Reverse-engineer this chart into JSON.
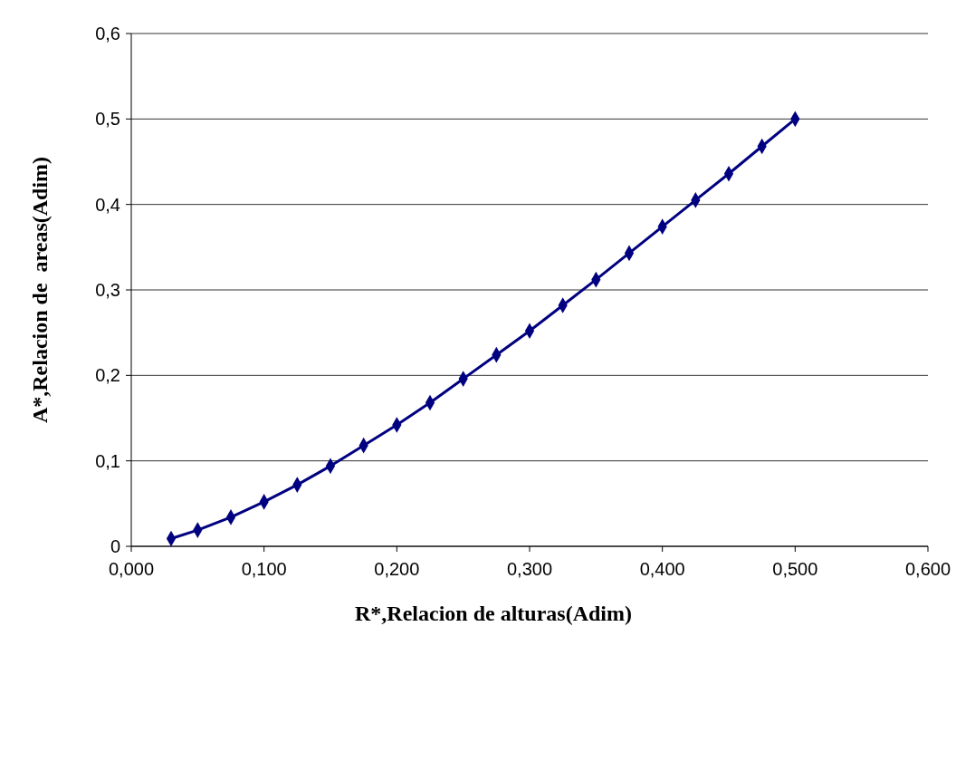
{
  "chart_data": {
    "type": "line",
    "xlabel": "R*,Relacion de alturas(Adim)",
    "ylabel": "A*,Relacion de  areas(Adim)",
    "x": [
      0.03,
      0.05,
      0.075,
      0.1,
      0.125,
      0.15,
      0.175,
      0.2,
      0.225,
      0.25,
      0.275,
      0.3,
      0.325,
      0.35,
      0.375,
      0.4,
      0.425,
      0.45,
      0.475,
      0.5
    ],
    "series": [
      {
        "color": "#000080",
        "values": [
          0.009,
          0.019,
          0.034,
          0.052,
          0.072,
          0.094,
          0.118,
          0.142,
          0.168,
          0.196,
          0.224,
          0.252,
          0.282,
          0.312,
          0.343,
          0.374,
          0.405,
          0.436,
          0.468,
          0.5
        ]
      }
    ],
    "xlim": [
      0,
      0.6
    ],
    "ylim": [
      0,
      0.6
    ],
    "xticks": [
      {
        "value": 0,
        "label": "0,000"
      },
      {
        "value": 0.1,
        "label": "0,100"
      },
      {
        "value": 0.2,
        "label": "0,200"
      },
      {
        "value": 0.3,
        "label": "0,300"
      },
      {
        "value": 0.4,
        "label": "0,400"
      },
      {
        "value": 0.5,
        "label": "0,500"
      },
      {
        "value": 0.6,
        "label": "0,600"
      }
    ],
    "yticks": [
      0,
      {
        "value": 0.1,
        "label": "0,1"
      },
      {
        "value": 0.2,
        "label": "0,2"
      },
      {
        "value": 0.3,
        "label": "0,3"
      },
      {
        "value": 0.4,
        "label": "0,4"
      },
      {
        "value": 0.5,
        "label": "0,5"
      },
      {
        "value": 0.6,
        "label": "0,6"
      }
    ],
    "grid": "y",
    "marker": "diamond",
    "line_style": "solid"
  }
}
